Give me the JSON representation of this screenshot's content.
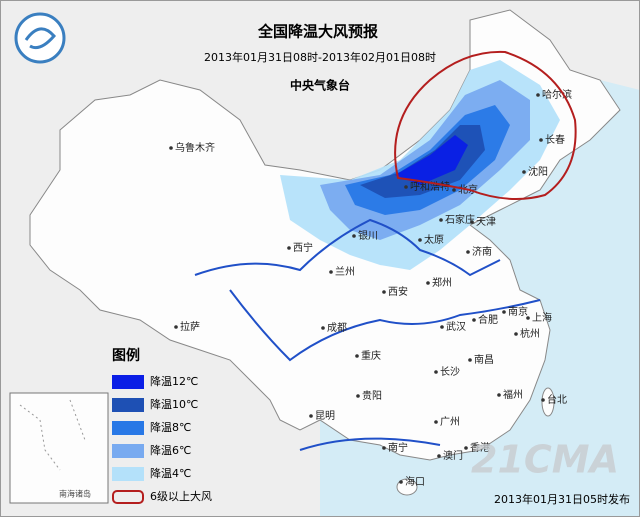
{
  "header": {
    "title": "全国降温大风预报",
    "period": "2013年01月31日08时-2013年02月01日08时",
    "issuer": "中央气象台"
  },
  "cities": [
    "乌鲁木齐",
    "哈尔滨",
    "长春",
    "沈阳",
    "呼和浩特",
    "北京",
    "天津",
    "石家庄",
    "太原",
    "银川",
    "西宁",
    "兰州",
    "济南",
    "郑州",
    "西安",
    "南京",
    "上海",
    "合肥",
    "杭州",
    "武汉",
    "成都",
    "拉萨",
    "重庆",
    "长沙",
    "南昌",
    "贵阳",
    "福州",
    "台北",
    "昆明",
    "广州",
    "南宁",
    "香港",
    "澳门",
    "海口"
  ],
  "legend": {
    "title": "图例",
    "items": [
      {
        "label": "降温12℃",
        "color": "#0a1ee6"
      },
      {
        "label": "降温10℃",
        "color": "#1e50b4"
      },
      {
        "label": "降温8℃",
        "color": "#2878e6"
      },
      {
        "label": "降温6℃",
        "color": "#78aaf0"
      },
      {
        "label": "降温4℃",
        "color": "#b4e1fa"
      },
      {
        "label": "6级以上大风",
        "color": "#b41e1e"
      }
    ]
  },
  "inset": "南海诸岛",
  "footer": "2013年01月31日05时发布",
  "watermark": "21CMA"
}
